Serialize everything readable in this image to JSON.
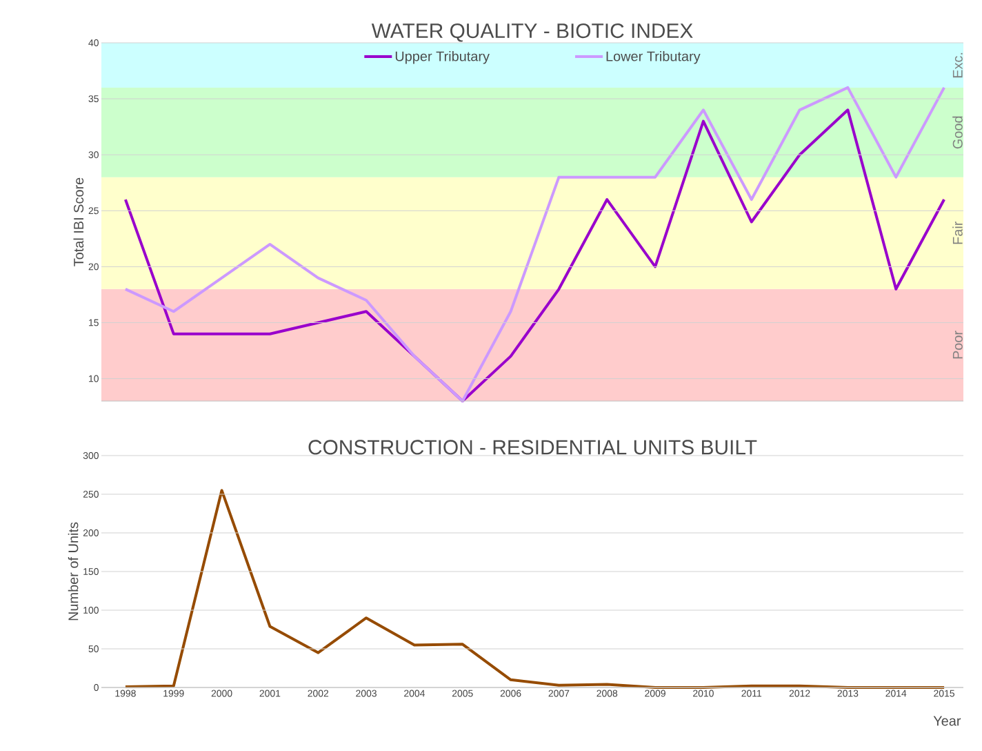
{
  "chart_data": [
    {
      "type": "line",
      "title": "WATER QUALITY - BIOTIC INDEX",
      "ylabel": "Total IBI Score",
      "x": [
        1998,
        1999,
        2000,
        2001,
        2002,
        2003,
        2004,
        2005,
        2006,
        2007,
        2008,
        2009,
        2010,
        2011,
        2012,
        2013,
        2014,
        2015
      ],
      "series": [
        {
          "name": "Upper Tributary",
          "color": "#9900cc",
          "values": [
            26,
            14,
            14,
            14,
            15,
            16,
            12,
            8,
            12,
            18,
            26,
            20,
            33,
            24,
            30,
            34,
            18,
            26
          ]
        },
        {
          "name": "Lower Tributary",
          "color": "#cc99ff",
          "values": [
            18,
            16,
            19,
            22,
            19,
            17,
            12,
            8,
            16,
            28,
            28,
            28,
            34,
            26,
            34,
            36,
            28,
            36
          ]
        }
      ],
      "bands": [
        {
          "axis": "y",
          "from": 8,
          "to": 18,
          "label": "Poor",
          "color": "#ffcccc"
        },
        {
          "axis": "y",
          "from": 18,
          "to": 28,
          "label": "Fair",
          "color": "#ffffcc"
        },
        {
          "axis": "y",
          "from": 28,
          "to": 36,
          "label": "Good",
          "color": "#ccffcc"
        },
        {
          "axis": "y",
          "from": 36,
          "to": 40,
          "label": "Exc.",
          "color": "#ccffff"
        }
      ],
      "xlim": [
        1997.5,
        2015.4
      ],
      "ylim": [
        8,
        40
      ],
      "yticks": [
        10,
        15,
        20,
        25,
        30,
        35,
        40
      ],
      "grid": "y",
      "legend": "top",
      "tick_labels": "y"
    },
    {
      "type": "line",
      "title": "CONSTRUCTION - RESIDENTIAL UNITS BUILT",
      "xlabel": "Year",
      "ylabel": "Number of Units",
      "x": [
        1998,
        1999,
        2000,
        2001,
        2002,
        2003,
        2004,
        2005,
        2006,
        2007,
        2008,
        2009,
        2010,
        2011,
        2012,
        2013,
        2014,
        2015
      ],
      "series": [
        {
          "color": "#964b00",
          "values": [
            1,
            2,
            255,
            79,
            45,
            90,
            55,
            56,
            10,
            3,
            4,
            0,
            0,
            2,
            2,
            0,
            0,
            0
          ]
        }
      ],
      "xlim": [
        1997.5,
        2015.4
      ],
      "ylim": [
        0,
        300
      ],
      "xticks": [
        1998,
        1999,
        2000,
        2001,
        2002,
        2003,
        2004,
        2005,
        2006,
        2007,
        2008,
        2009,
        2010,
        2011,
        2012,
        2013,
        2014,
        2015
      ],
      "yticks": [
        0,
        50,
        100,
        150,
        200,
        250,
        300
      ],
      "grid": "y"
    }
  ]
}
